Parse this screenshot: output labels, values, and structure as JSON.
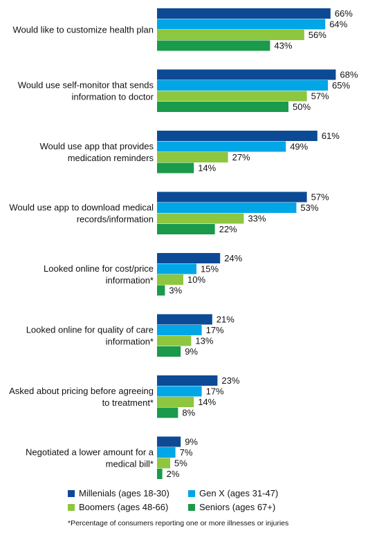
{
  "chart_data": {
    "type": "bar",
    "orientation": "horizontal",
    "categories": [
      "Would like to customize health plan",
      "Would use self-monitor that sends information to doctor",
      "Would use app that provides medication reminders",
      "Would use app to download medical records/information",
      "Looked online for cost/price information*",
      "Looked online for quality of care information*",
      "Asked about pricing before agreeing to treatment*",
      "Negotiated a lower amount for a medical bill*"
    ],
    "category_lines": [
      [
        "Would like to customize health plan"
      ],
      [
        "Would use self-monitor that sends",
        "information to doctor"
      ],
      [
        "Would use app that provides",
        "medication reminders"
      ],
      [
        "Would use app to download medical",
        "records/information"
      ],
      [
        "Looked online for cost/price",
        "information*"
      ],
      [
        "Looked online for quality of care",
        "information*"
      ],
      [
        "Asked about pricing before agreeing",
        "to treatment*"
      ],
      [
        "Negotiated a lower amount for a",
        "medical bill*"
      ]
    ],
    "series": [
      {
        "name": "Millenials (ages 18-30)",
        "color": "#0d4a96",
        "values": [
          66,
          68,
          61,
          57,
          24,
          21,
          23,
          9
        ]
      },
      {
        "name": "Gen X (ages 31-47)",
        "color": "#00a6e6",
        "values": [
          64,
          65,
          49,
          53,
          15,
          17,
          17,
          7
        ]
      },
      {
        "name": "Boomers (ages 48-66)",
        "color": "#8dc63f",
        "values": [
          56,
          57,
          27,
          33,
          10,
          13,
          14,
          5
        ]
      },
      {
        "name": "Seniors (ages 67+)",
        "color": "#1a9a4a",
        "values": [
          43,
          50,
          14,
          22,
          3,
          9,
          8,
          2
        ]
      }
    ],
    "value_suffix": "%",
    "xlim": [
      0,
      100
    ],
    "grid": false,
    "legend_position": "bottom",
    "footnote": "*Percentage of consumers reporting one or more illnesses or injuries"
  }
}
